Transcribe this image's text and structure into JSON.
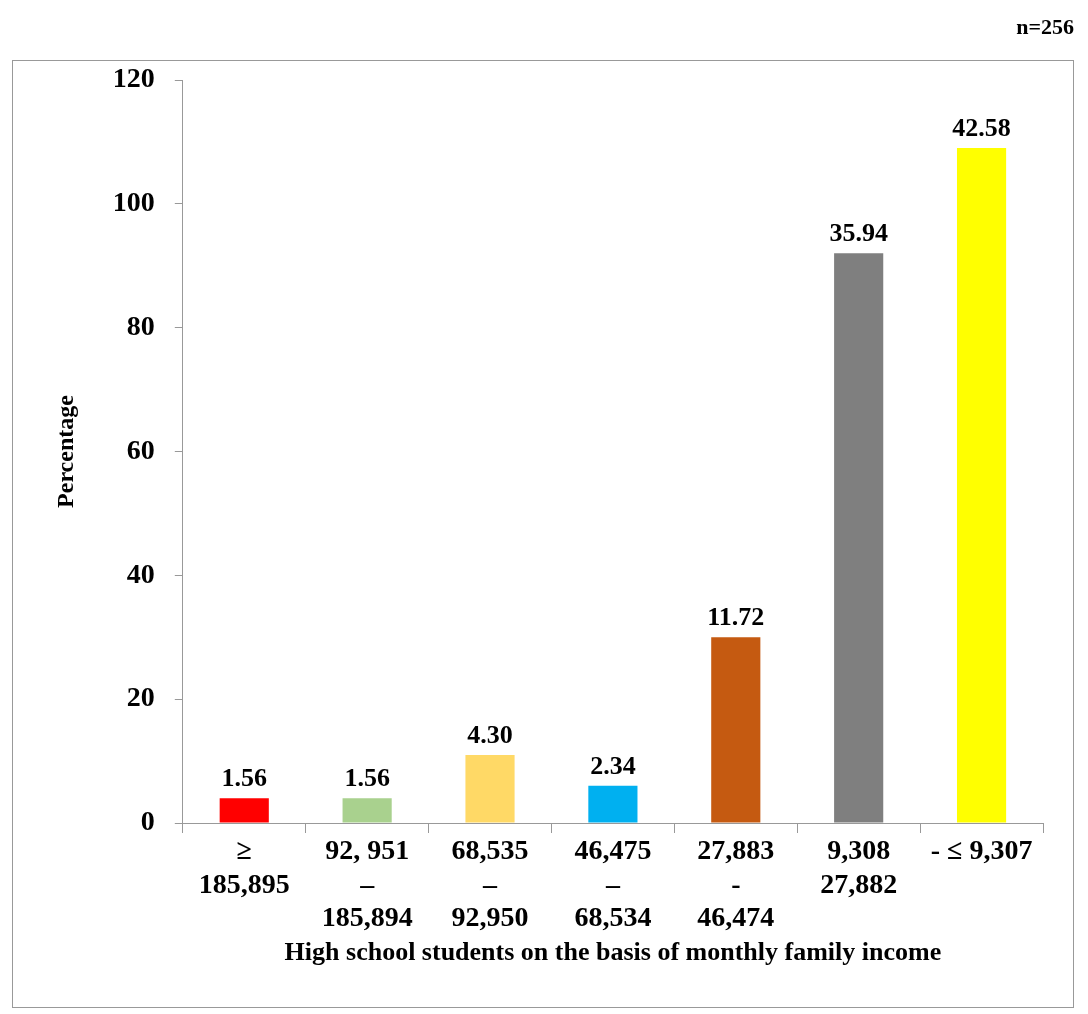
{
  "chart_data": {
    "type": "bar",
    "xlabel": "High school students on the basis of monthly family income",
    "ylabel": "Percentage",
    "categories": [
      "≥\n185,895",
      "92, 951\n–\n185,894",
      "68,535\n–\n92,950",
      "46,475\n–\n68,534",
      "27,883\n-\n46,474",
      "9,308\n27,882",
      "- ≤ 9,307"
    ],
    "values": [
      4,
      4,
      11,
      6,
      30,
      92,
      109
    ],
    "colors": [
      "#ff0000",
      "#a9d18e",
      "#ffd966",
      "#00b0f0",
      "#c55a11",
      "#7f7f7f",
      "#ffff00"
    ],
    "ylim": [
      0,
      120
    ],
    "yticks": [
      0,
      20,
      40,
      60,
      80,
      100,
      120
    ],
    "annotations": [
      "n=256",
      {
        "text": "1.56",
        "x": "≥\n185,895",
        "y": 4
      },
      {
        "text": "1.56",
        "x": "92, 951\n–\n185,894",
        "y": 4
      },
      {
        "text": "4.30",
        "x": "68,535\n–\n92,950",
        "y": 11
      },
      {
        "text": "2.34",
        "x": "46,475\n–\n68,534",
        "y": 6
      },
      {
        "text": "11.72",
        "x": "27,883\n-\n46,474",
        "y": 30
      },
      {
        "text": "35.94",
        "x": "9,308\n27,882",
        "y": 92
      },
      {
        "text": "42.58",
        "x": "- ≤ 9,307",
        "y": 109
      }
    ],
    "grid": false,
    "legend": false
  }
}
